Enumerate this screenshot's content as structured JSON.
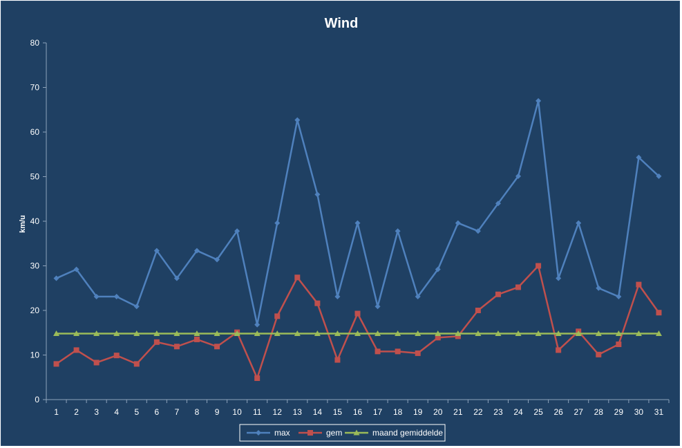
{
  "chart_data": {
    "type": "line",
    "title": "Wind",
    "xlabel": "",
    "ylabel": "km/u",
    "ylim": [
      0,
      80
    ],
    "yticks": [
      0,
      10,
      20,
      30,
      40,
      50,
      60,
      70,
      80
    ],
    "grid": false,
    "legend_position": "bottom",
    "x": [
      1,
      2,
      3,
      4,
      5,
      6,
      7,
      8,
      9,
      10,
      11,
      12,
      13,
      14,
      15,
      16,
      17,
      18,
      19,
      20,
      21,
      22,
      23,
      24,
      25,
      26,
      27,
      28,
      29,
      30,
      31
    ],
    "series": [
      {
        "name": "max",
        "color": "#4f81bd",
        "marker": "diamond",
        "values": [
          27.2,
          29.2,
          23.1,
          23.1,
          20.9,
          33.4,
          27.2,
          33.4,
          31.4,
          37.8,
          16.8,
          39.6,
          62.7,
          46.0,
          23.1,
          39.6,
          20.9,
          37.8,
          23.1,
          29.2,
          39.6,
          37.8,
          44.0,
          50.1,
          67.0,
          27.2,
          39.6,
          25.0,
          23.1,
          54.3,
          50.1
        ]
      },
      {
        "name": "gem",
        "color": "#c0504d",
        "marker": "square",
        "values": [
          8.0,
          11.1,
          8.3,
          9.9,
          8.0,
          12.9,
          11.9,
          13.5,
          11.9,
          15.1,
          4.8,
          18.7,
          27.4,
          21.6,
          8.9,
          19.3,
          10.8,
          10.8,
          10.4,
          13.9,
          14.2,
          20.0,
          23.6,
          25.2,
          30.0,
          11.1,
          15.3,
          10.1,
          12.4,
          25.8,
          19.5
        ]
      },
      {
        "name": "maand gemiddelde",
        "color": "#9bbb59",
        "marker": "triangle",
        "values": [
          14.8,
          14.8,
          14.8,
          14.8,
          14.8,
          14.8,
          14.8,
          14.8,
          14.8,
          14.8,
          14.8,
          14.8,
          14.8,
          14.8,
          14.8,
          14.8,
          14.8,
          14.8,
          14.8,
          14.8,
          14.8,
          14.8,
          14.8,
          14.8,
          14.8,
          14.8,
          14.8,
          14.8,
          14.8,
          14.8,
          14.8
        ]
      }
    ]
  }
}
